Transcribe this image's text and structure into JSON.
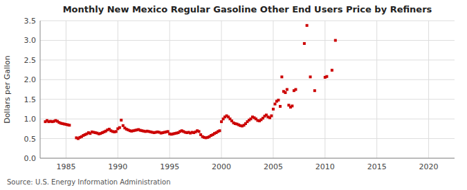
{
  "chart_data": {
    "type": "scatter",
    "title": "Monthly New Mexico Regular Gasoline Other End Users Price by Refiners",
    "ylabel": "Dollars per Gallon",
    "annotations": [
      "Source: U.S. Energy Information Administration"
    ],
    "color": "#CC0000",
    "marker": "square",
    "grid": true,
    "xlim": [
      1982.5,
      2022.5
    ],
    "ylim": [
      0.0,
      3.5
    ],
    "xticks": [
      1985,
      1990,
      1995,
      2000,
      2005,
      2010,
      2015,
      2020
    ],
    "yticks": [
      {
        "value": 0,
        "label": "0.0"
      },
      0.5,
      {
        "value": 1,
        "label": "1.0"
      },
      1.5,
      {
        "value": 2,
        "label": "2.0"
      },
      2.5,
      {
        "value": 3,
        "label": "3.0"
      },
      3.5
    ],
    "x": [
      1983.0,
      1983.17,
      1983.33,
      1983.5,
      1983.67,
      1983.83,
      1984.0,
      1984.17,
      1984.33,
      1984.5,
      1984.67,
      1984.83,
      1985.0,
      1985.17,
      1985.33,
      1986.0,
      1986.17,
      1986.33,
      1986.5,
      1986.67,
      1986.83,
      1987.0,
      1987.17,
      1987.33,
      1987.5,
      1987.67,
      1987.83,
      1988.0,
      1988.17,
      1988.33,
      1988.5,
      1988.67,
      1988.83,
      1989.0,
      1989.17,
      1989.33,
      1989.5,
      1989.67,
      1989.83,
      1990.0,
      1990.17,
      1990.33,
      1990.5,
      1990.67,
      1990.83,
      1991.0,
      1991.17,
      1991.33,
      1991.5,
      1991.67,
      1991.83,
      1992.0,
      1992.17,
      1992.33,
      1992.5,
      1992.67,
      1992.83,
      1993.0,
      1993.17,
      1993.33,
      1993.5,
      1993.67,
      1993.83,
      1994.0,
      1994.17,
      1994.33,
      1994.5,
      1994.67,
      1994.83,
      1995.0,
      1995.17,
      1995.33,
      1995.5,
      1995.67,
      1995.83,
      1996.0,
      1996.17,
      1996.33,
      1996.5,
      1996.67,
      1996.83,
      1997.0,
      1997.17,
      1997.33,
      1997.5,
      1997.67,
      1997.83,
      1998.0,
      1998.17,
      1998.33,
      1998.5,
      1998.67,
      1998.83,
      1999.0,
      1999.17,
      1999.33,
      1999.5,
      1999.67,
      1999.83,
      2000.0,
      2000.17,
      2000.33,
      2000.5,
      2000.67,
      2000.83,
      2001.0,
      2001.17,
      2001.33,
      2001.5,
      2001.67,
      2001.83,
      2002.0,
      2002.17,
      2002.33,
      2002.5,
      2002.67,
      2002.83,
      2003.0,
      2003.17,
      2003.33,
      2003.5,
      2003.67,
      2003.83,
      2004.0,
      2004.17,
      2004.33,
      2004.5,
      2004.67,
      2004.83,
      2005.0,
      2005.17,
      2005.33,
      2005.5,
      2005.67,
      2005.83,
      2006.0,
      2006.17,
      2006.33,
      2006.5,
      2006.67,
      2006.83,
      2007.0,
      2007.17,
      2008.0,
      2008.25,
      2008.58,
      2009.0,
      2010.0,
      2010.17,
      2010.67,
      2011.0
    ],
    "values": [
      0.93,
      0.96,
      0.93,
      0.94,
      0.93,
      0.94,
      0.96,
      0.94,
      0.91,
      0.89,
      0.88,
      0.87,
      0.86,
      0.85,
      0.84,
      0.52,
      0.5,
      0.53,
      0.55,
      0.58,
      0.6,
      0.62,
      0.65,
      0.63,
      0.67,
      0.66,
      0.65,
      0.64,
      0.62,
      0.63,
      0.65,
      0.67,
      0.69,
      0.72,
      0.74,
      0.7,
      0.68,
      0.67,
      0.68,
      0.75,
      0.78,
      0.97,
      0.83,
      0.77,
      0.74,
      0.72,
      0.7,
      0.69,
      0.7,
      0.71,
      0.72,
      0.73,
      0.71,
      0.7,
      0.69,
      0.68,
      0.69,
      0.68,
      0.67,
      0.66,
      0.65,
      0.66,
      0.67,
      0.66,
      0.64,
      0.65,
      0.66,
      0.67,
      0.68,
      0.62,
      0.61,
      0.62,
      0.63,
      0.64,
      0.65,
      0.68,
      0.7,
      0.68,
      0.66,
      0.65,
      0.66,
      0.64,
      0.66,
      0.65,
      0.67,
      0.7,
      0.68,
      0.6,
      0.55,
      0.53,
      0.52,
      0.53,
      0.55,
      0.58,
      0.6,
      0.63,
      0.65,
      0.68,
      0.7,
      0.93,
      1.0,
      1.05,
      1.08,
      1.05,
      1.0,
      0.95,
      0.9,
      0.88,
      0.87,
      0.85,
      0.83,
      0.82,
      0.84,
      0.88,
      0.93,
      0.97,
      1.0,
      1.05,
      1.03,
      1.0,
      0.96,
      0.95,
      0.98,
      1.02,
      1.07,
      1.1,
      1.05,
      1.03,
      1.08,
      1.25,
      1.38,
      1.45,
      1.48,
      1.32,
      2.07,
      1.7,
      1.67,
      1.75,
      1.35,
      1.3,
      1.33,
      1.72,
      1.75,
      2.92,
      3.38,
      2.07,
      1.72,
      2.06,
      2.08,
      2.24,
      3.0
    ]
  }
}
